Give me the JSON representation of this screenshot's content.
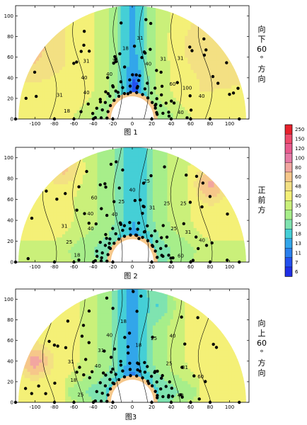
{
  "chart_data": [
    {
      "type": "contour",
      "title": "图 1",
      "side_label": [
        "向",
        "下",
        "60",
        "°",
        "方",
        "向"
      ],
      "x_ticks": [
        -100,
        -80,
        -60,
        -40,
        -20,
        0,
        20,
        40,
        60,
        80,
        100
      ],
      "y_ticks": [
        0,
        20,
        40,
        60,
        80,
        100
      ],
      "xlim": [
        -120,
        120
      ],
      "ylim": [
        0,
        110
      ],
      "contour_labels": [
        "40",
        "40",
        "100",
        "60",
        "31",
        "31",
        "40",
        "31",
        "18",
        "31",
        "40",
        "31",
        "40",
        "40",
        "31",
        "18"
      ]
    },
    {
      "type": "contour",
      "title": "图 2",
      "side_label": [
        "正",
        "前",
        "方"
      ],
      "x_ticks": [
        -100,
        -80,
        -60,
        -40,
        -20,
        0,
        20,
        40,
        60,
        80,
        100
      ],
      "y_ticks": [
        0,
        20,
        40,
        60,
        80,
        100
      ],
      "xlim": [
        -120,
        120
      ],
      "ylim": [
        0,
        110
      ],
      "contour_labels": [
        "60",
        "40",
        "31",
        "25",
        "25",
        "25",
        "31",
        "25",
        "40",
        "25",
        "40",
        "60",
        "40",
        "40",
        "31",
        "25",
        "18"
      ]
    },
    {
      "type": "contour",
      "title": "图3",
      "side_label": [
        "向",
        "上",
        "60",
        "°",
        "方",
        "向"
      ],
      "x_ticks": [
        -100,
        -80,
        -60,
        -40,
        -20,
        0,
        20,
        40,
        60,
        80,
        100
      ],
      "y_ticks": [
        0,
        20,
        40,
        60,
        80,
        100
      ],
      "xlim": [
        -120,
        120
      ],
      "ylim": [
        0,
        110
      ],
      "contour_labels": [
        "40",
        "60",
        "31",
        "25",
        "40",
        "25",
        "18",
        "18",
        "40",
        "31",
        "40",
        "31",
        "18",
        "25"
      ]
    }
  ],
  "legend": {
    "levels": [
      "250",
      "150",
      "120",
      "100",
      "80",
      "60",
      "48",
      "40",
      "35",
      "30",
      "25",
      "18",
      "13",
      "11",
      "7",
      "6"
    ],
    "colors": [
      "#e8212c",
      "#ef4a6b",
      "#e95a8d",
      "#e77aa6",
      "#f2a6a0",
      "#f6c78a",
      "#f3e083",
      "#f4f077",
      "#caf07a",
      "#a7ee8a",
      "#7fe3b0",
      "#45cfd6",
      "#32a6ea",
      "#2a80ee",
      "#2350ef",
      "#1f2fe6"
    ]
  }
}
